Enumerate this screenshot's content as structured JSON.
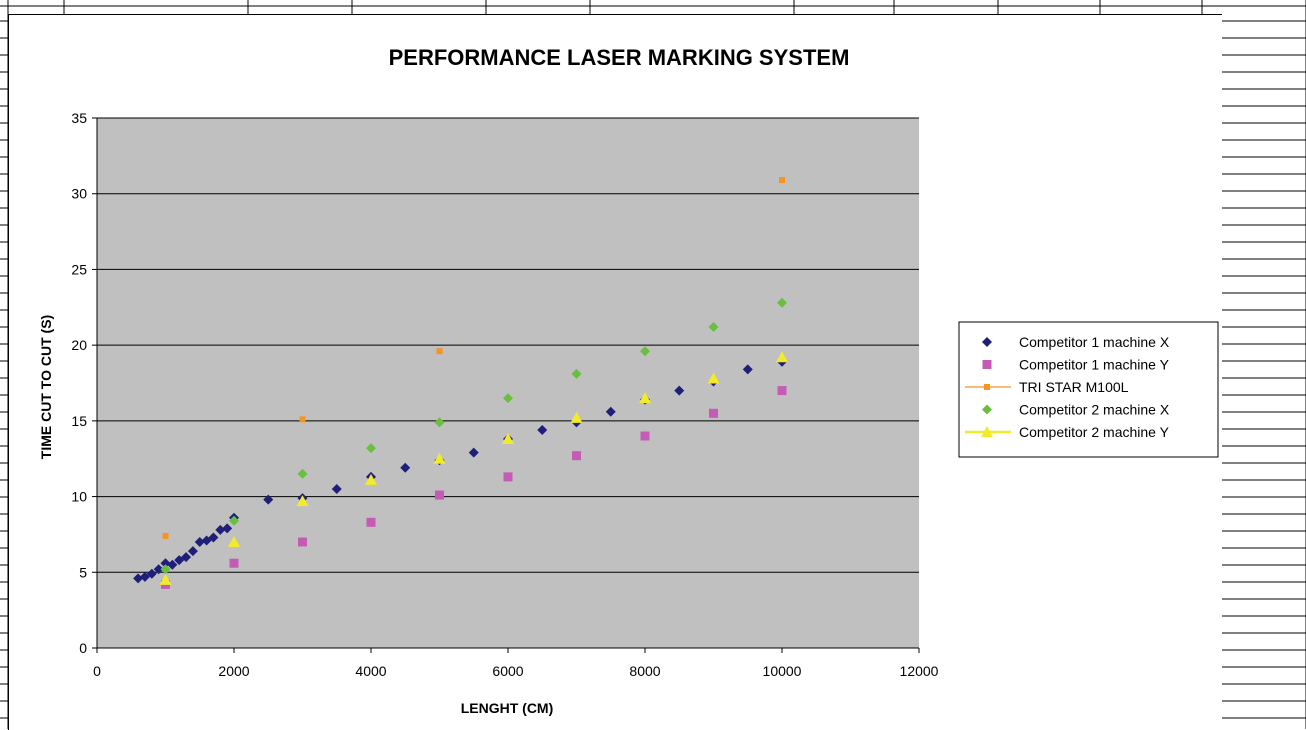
{
  "chart_data": {
    "type": "scatter",
    "title": "PERFORMANCE LASER MARKING SYSTEM",
    "xlabel": "LENGHT (CM)",
    "ylabel": "TIME CUT TO CUT (S)",
    "xlim": [
      0,
      12000
    ],
    "ylim": [
      0,
      35
    ],
    "xticks": [
      0,
      2000,
      4000,
      6000,
      8000,
      10000,
      12000
    ],
    "yticks": [
      0,
      5,
      10,
      15,
      20,
      25,
      30,
      35
    ],
    "grid": "horizontal",
    "plot_background": "#C0C0C0",
    "legend_position": "right",
    "series": [
      {
        "name": "Competitor 1 machine X",
        "marker": "diamond",
        "color": "#1F1F7A",
        "x": [
          600,
          700,
          800,
          900,
          1000,
          1100,
          1200,
          1300,
          1400,
          1500,
          1600,
          1700,
          1800,
          1900,
          2000,
          2500,
          3000,
          3500,
          4000,
          4500,
          5000,
          5500,
          6000,
          6500,
          7000,
          7500,
          8000,
          8500,
          9000,
          9500,
          10000
        ],
        "y": [
          4.6,
          4.7,
          4.9,
          5.2,
          5.6,
          5.5,
          5.8,
          6.0,
          6.4,
          7.0,
          7.1,
          7.3,
          7.8,
          7.9,
          8.6,
          9.8,
          9.9,
          10.5,
          11.3,
          11.9,
          12.4,
          12.9,
          13.8,
          14.4,
          14.9,
          15.6,
          16.4,
          17.0,
          17.6,
          18.4,
          18.9
        ]
      },
      {
        "name": "Competitor 1 machine Y",
        "marker": "square",
        "color": "#C45BB5",
        "x": [
          1000,
          2000,
          3000,
          4000,
          5000,
          6000,
          7000,
          8000,
          9000,
          10000
        ],
        "y": [
          4.2,
          5.6,
          7.0,
          8.3,
          10.1,
          11.3,
          12.7,
          14.0,
          15.5,
          17.0
        ]
      },
      {
        "name": "TRI STAR M100L",
        "marker": "small-square-line",
        "color": "#F7941D",
        "x": [
          1000,
          3000,
          5000,
          10000
        ],
        "y": [
          7.4,
          15.1,
          19.6,
          30.9
        ]
      },
      {
        "name": "Competitor 2 machine X",
        "marker": "diamond",
        "color": "#6ABF40",
        "x": [
          1000,
          2000,
          3000,
          4000,
          5000,
          6000,
          7000,
          8000,
          9000,
          10000
        ],
        "y": [
          5.2,
          8.4,
          11.5,
          13.2,
          14.9,
          16.5,
          18.1,
          19.6,
          21.2,
          22.8
        ]
      },
      {
        "name": "Competitor 2 machine Y",
        "marker": "triangle",
        "color": "#F2EB2A",
        "x": [
          1000,
          2000,
          3000,
          4000,
          5000,
          6000,
          7000,
          8000,
          9000,
          10000
        ],
        "y": [
          4.5,
          7.0,
          9.7,
          11.1,
          12.5,
          13.8,
          15.2,
          16.5,
          17.8,
          19.2
        ]
      }
    ]
  }
}
